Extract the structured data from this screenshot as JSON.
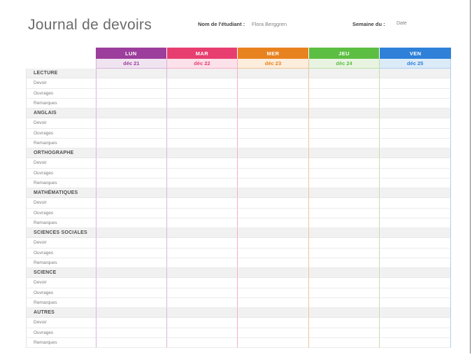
{
  "page": {
    "title": "Journal de devoirs",
    "student_label": "Nom de l'étudiant :",
    "student_name": "Flora Berggren",
    "week_label": "Semaine du :",
    "week_value": "Date"
  },
  "table": {
    "days": [
      {
        "label": "LUN",
        "date": "déc 21",
        "color": "#9C3E9C",
        "date_bg": "#F0E4F1",
        "line": "#D9B3D9"
      },
      {
        "label": "MAR",
        "date": "déc 22",
        "color": "#E73E6F",
        "date_bg": "#FBE1EA",
        "line": "#F5AEC6"
      },
      {
        "label": "MER",
        "date": "déc 23",
        "color": "#E8821F",
        "date_bg": "#FCEDDC",
        "line": "#EBC49A"
      },
      {
        "label": "JEU",
        "date": "déc 24",
        "color": "#5CBE42",
        "date_bg": "#E8F4E1",
        "line": "#BFE0AC"
      },
      {
        "label": "VEN",
        "date": "déc 25",
        "color": "#2E80D9",
        "date_bg": "#DCEBF8",
        "line": "#AECDF0"
      }
    ],
    "subjects": [
      "LECTURE",
      "ANGLAIS",
      "ORTHOGRAPHE",
      "MATHÉMATIQUES",
      "SCIENCES SOCIALES",
      "SCIENCE",
      "AUTRES"
    ],
    "row_labels": [
      "Devoir",
      "Ouvrages",
      "Remarques"
    ],
    "cell_value": ""
  }
}
